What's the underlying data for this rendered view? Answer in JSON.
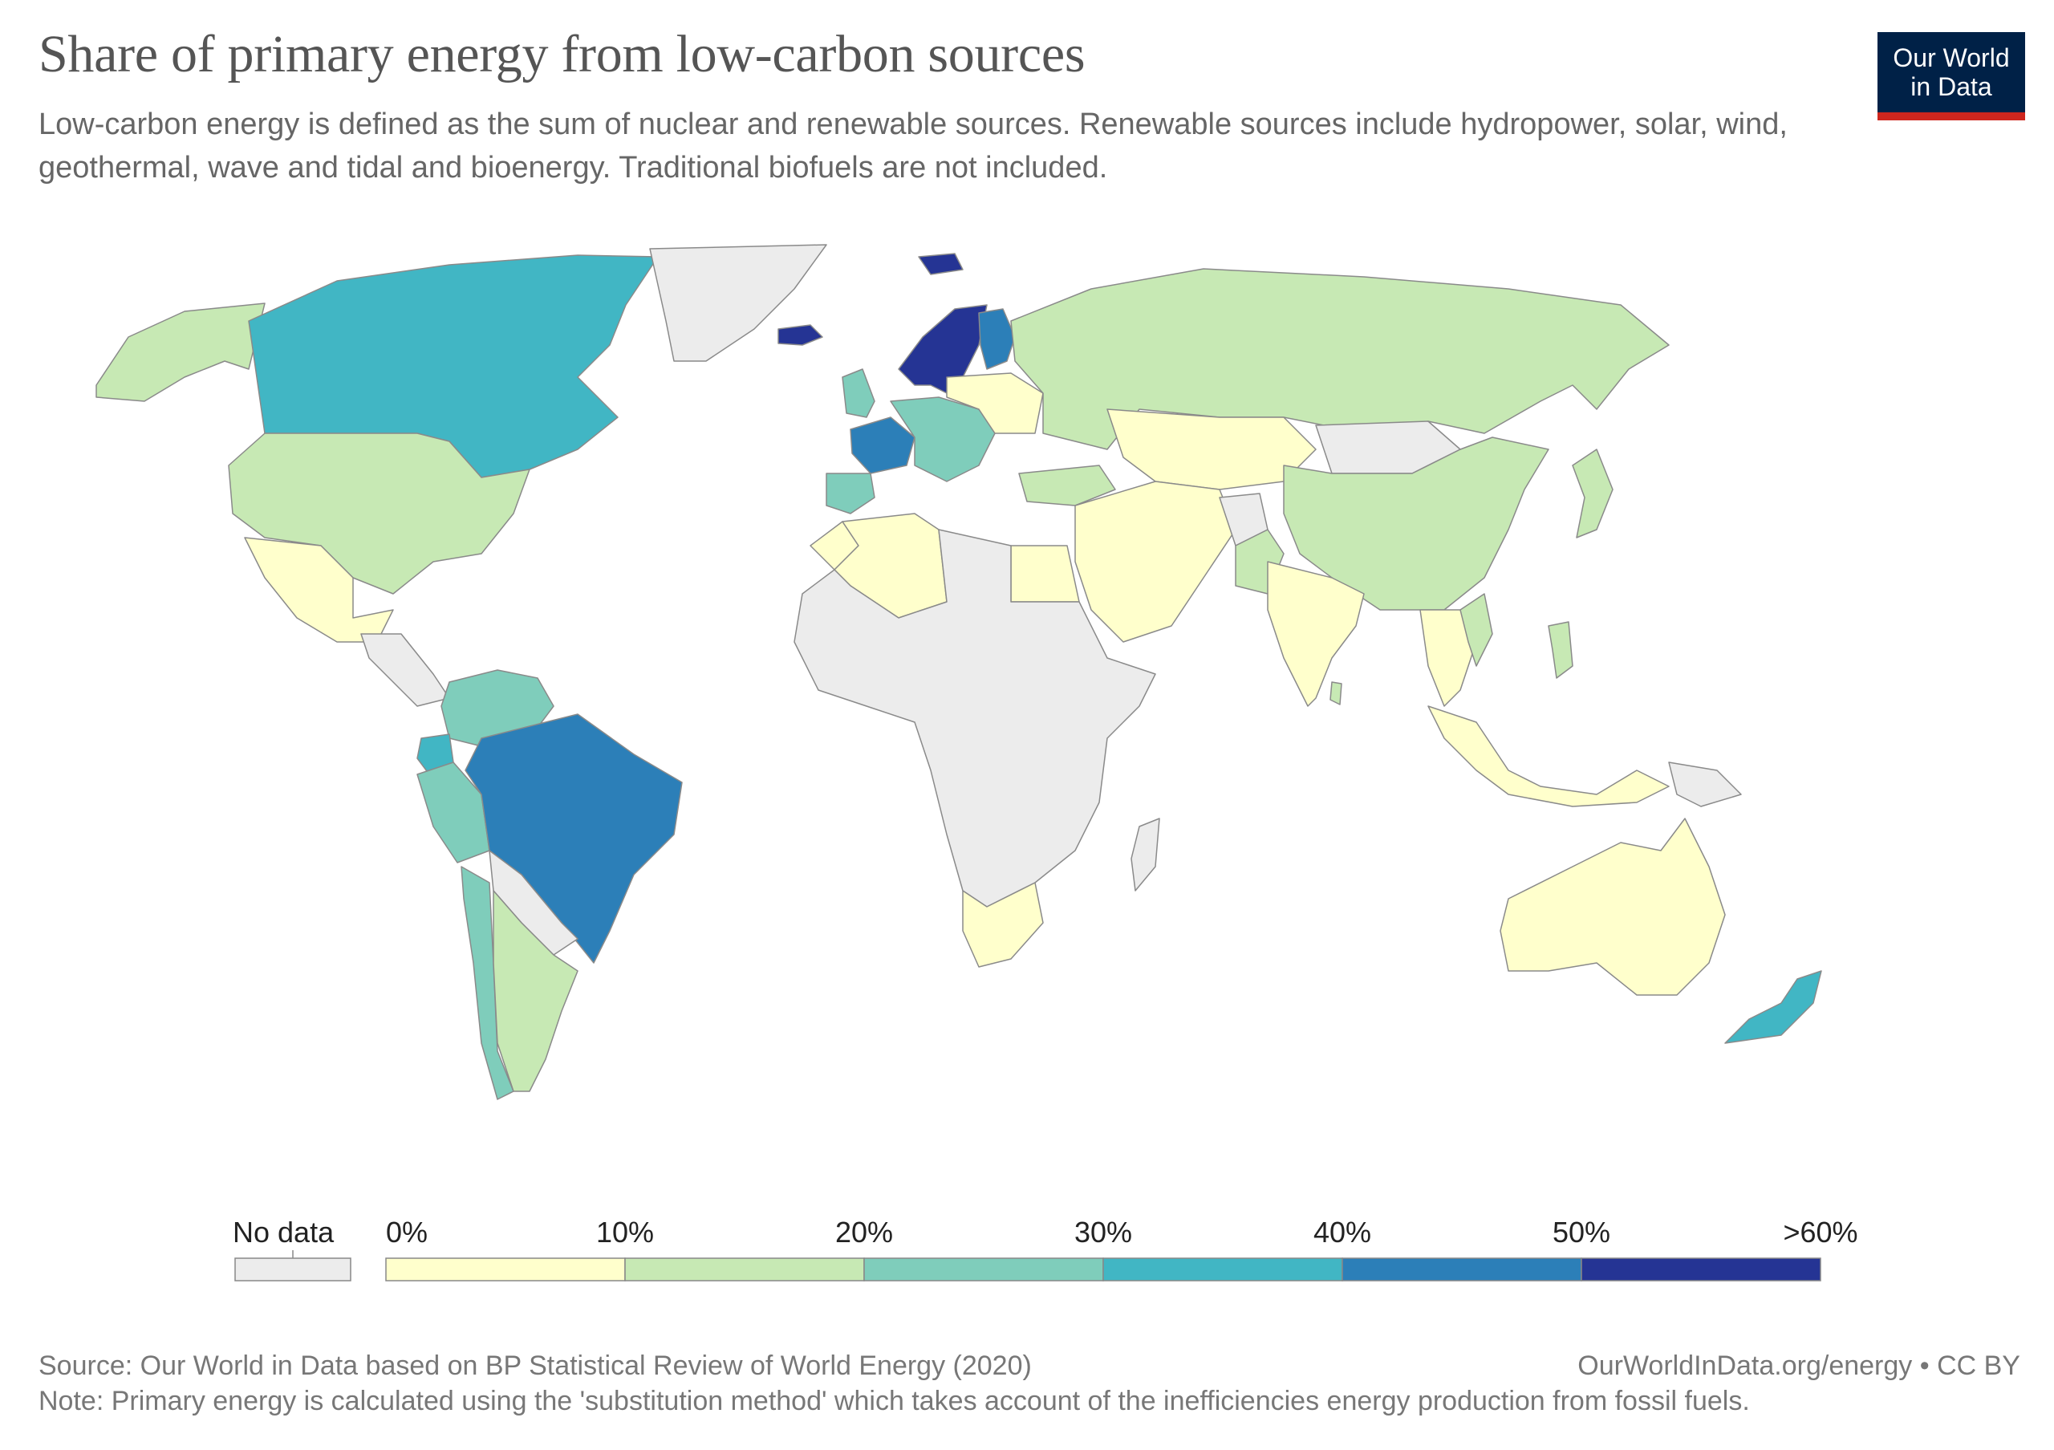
{
  "title": "Share of primary energy from low-carbon sources",
  "subtitle": "Low-carbon energy is defined as the sum of nuclear and renewable sources. Renewable sources include hydropower, solar, wind, geothermal, wave and tidal and bioenergy. Traditional biofuels are not included.",
  "logo": {
    "line1": "Our World",
    "line2": "in Data"
  },
  "legend": {
    "no_data_label": "No data",
    "no_data_color": "#ececec",
    "bins": [
      {
        "label": "0%",
        "color": "#ffffcc"
      },
      {
        "label": "10%",
        "color": "#c7e9b4"
      },
      {
        "label": "20%",
        "color": "#7fcdbb"
      },
      {
        "label": "30%",
        "color": "#41b6c4"
      },
      {
        "label": "40%",
        "color": "#2c7fb8"
      },
      {
        "label": "50%",
        "color": "#253494"
      }
    ],
    "last_label": ">60%"
  },
  "map_regions": [
    {
      "id": "alaska",
      "bin": 1
    },
    {
      "id": "canada",
      "bin": 3
    },
    {
      "id": "usa",
      "bin": 1
    },
    {
      "id": "mexico",
      "bin": 0
    },
    {
      "id": "greenland",
      "bin": -1
    },
    {
      "id": "central-america",
      "bin": -1
    },
    {
      "id": "colombia-venezuela",
      "bin": 2
    },
    {
      "id": "ecuador",
      "bin": 3
    },
    {
      "id": "peru",
      "bin": 2
    },
    {
      "id": "brazil",
      "bin": 4
    },
    {
      "id": "bolivia-paraguay",
      "bin": -1
    },
    {
      "id": "chile",
      "bin": 2
    },
    {
      "id": "argentina",
      "bin": 1
    },
    {
      "id": "iceland",
      "bin": 5
    },
    {
      "id": "norway-sweden",
      "bin": 5
    },
    {
      "id": "finland",
      "bin": 4
    },
    {
      "id": "uk",
      "bin": 2
    },
    {
      "id": "france",
      "bin": 4
    },
    {
      "id": "iberia",
      "bin": 2
    },
    {
      "id": "central-europe",
      "bin": 2
    },
    {
      "id": "eastern-europe",
      "bin": 0
    },
    {
      "id": "svalbard",
      "bin": 5
    },
    {
      "id": "russia",
      "bin": 1
    },
    {
      "id": "kazakhstan",
      "bin": 0
    },
    {
      "id": "mongolia",
      "bin": -1
    },
    {
      "id": "china",
      "bin": 1
    },
    {
      "id": "japan",
      "bin": 1
    },
    {
      "id": "middle-east",
      "bin": 0
    },
    {
      "id": "turkey",
      "bin": 1
    },
    {
      "id": "pakistan",
      "bin": 1
    },
    {
      "id": "afghanistan",
      "bin": -1
    },
    {
      "id": "india",
      "bin": 0
    },
    {
      "id": "sri-lanka",
      "bin": 1
    },
    {
      "id": "southeast-asia",
      "bin": 0
    },
    {
      "id": "vietnam",
      "bin": 1
    },
    {
      "id": "philippines",
      "bin": 1
    },
    {
      "id": "indonesia",
      "bin": 0
    },
    {
      "id": "papua-new-guinea",
      "bin": -1
    },
    {
      "id": "australia",
      "bin": 0
    },
    {
      "id": "new-zealand",
      "bin": 3
    },
    {
      "id": "algeria",
      "bin": 0
    },
    {
      "id": "morocco",
      "bin": 0
    },
    {
      "id": "egypt",
      "bin": 0
    },
    {
      "id": "africa-rest",
      "bin": -1
    },
    {
      "id": "south-africa",
      "bin": 0
    },
    {
      "id": "madagascar",
      "bin": -1
    }
  ],
  "footer": {
    "source": "Source: Our World in Data based on BP Statistical Review of World Energy (2020)",
    "url": "OurWorldInData.org/energy • CC BY",
    "note": "Note: Primary energy is calculated using the 'substitution method' which takes account of the inefficiencies energy production from fossil fuels."
  }
}
